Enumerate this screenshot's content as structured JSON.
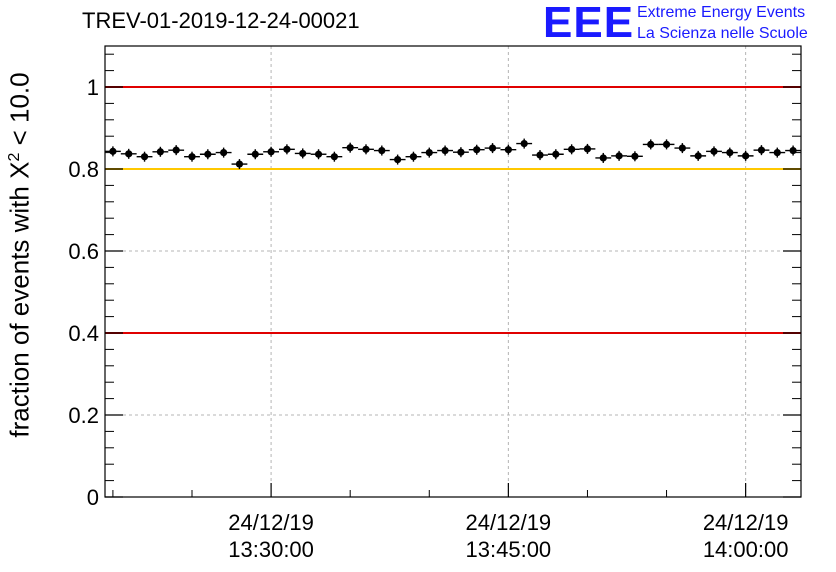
{
  "chart_data": {
    "type": "scatter",
    "title": "TREV-01-2019-12-24-00021",
    "ylabel": "fraction of events with X",
    "ylabel_sup": "2",
    "ylabel_suffix": " < 10.0",
    "xlabel": "",
    "ylim": [
      0,
      1.1
    ],
    "y_ticks": [
      0,
      0.2,
      0.4,
      0.6,
      0.8,
      1
    ],
    "y_tick_labels": [
      "0",
      "0.2",
      "0.4",
      "0.6",
      "0.8",
      "1"
    ],
    "xlim_minutes": [
      19.5,
      63.5
    ],
    "x_ticks_minutes": [
      30,
      45,
      60
    ],
    "x_tick_date": "24/12/19",
    "x_tick_times": [
      "13:30:00",
      "13:45:00",
      "14:00:00"
    ],
    "grid": true,
    "reference_lines": [
      {
        "name": "upper-limit",
        "value": 1.0,
        "color": "#e00000"
      },
      {
        "name": "warning-level",
        "value": 0.8,
        "color": "#ffc800"
      },
      {
        "name": "lower-limit",
        "value": 0.4,
        "color": "#e00000"
      }
    ],
    "series": [
      {
        "name": "fraction",
        "color": "#000000",
        "x_minutes": [
          20,
          21,
          22,
          23,
          24,
          25,
          26,
          27,
          28,
          29,
          30,
          31,
          32,
          33,
          34,
          35,
          36,
          37,
          38,
          39,
          40,
          41,
          42,
          43,
          44,
          45,
          46,
          47,
          48,
          49,
          50,
          51,
          52,
          53,
          54,
          55,
          56,
          57,
          58,
          59,
          60,
          61,
          62,
          63
        ],
        "values": [
          0.843,
          0.837,
          0.83,
          0.842,
          0.846,
          0.83,
          0.836,
          0.84,
          0.812,
          0.836,
          0.842,
          0.848,
          0.838,
          0.836,
          0.83,
          0.852,
          0.848,
          0.845,
          0.823,
          0.83,
          0.84,
          0.845,
          0.841,
          0.847,
          0.851,
          0.847,
          0.862,
          0.834,
          0.836,
          0.848,
          0.849,
          0.827,
          0.832,
          0.831,
          0.86,
          0.86,
          0.851,
          0.832,
          0.843,
          0.84,
          0.832,
          0.846,
          0.84,
          0.845
        ]
      }
    ]
  },
  "logo": {
    "mark": "EEE",
    "line1": "Extreme Energy Events",
    "line2": "La Scienza nelle Scuole"
  }
}
